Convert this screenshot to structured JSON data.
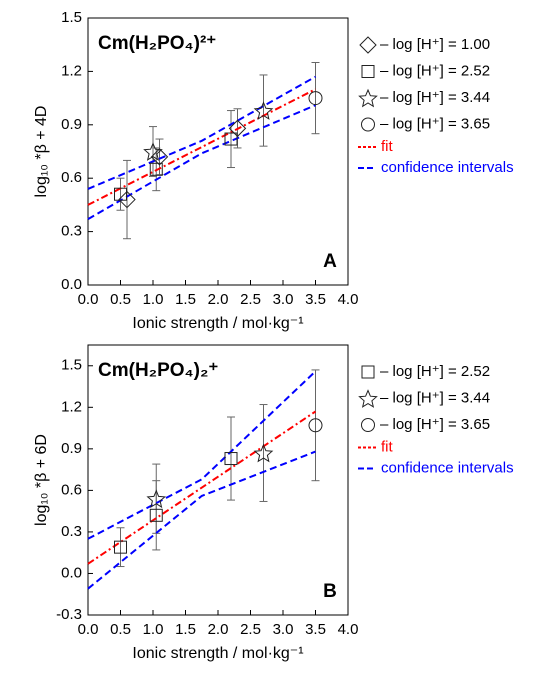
{
  "chart_data": [
    {
      "type": "scatter",
      "title": "Cm(H₂PO₄)²⁺",
      "xlabel": "Ionic strength / mol·kg⁻¹",
      "ylabel": "log₁₀ *β + 4D",
      "annotation": "A",
      "xlim": [
        0,
        4
      ],
      "ylim": [
        0,
        1.5
      ],
      "xticks": [
        {
          "value": 0,
          "label": "0.0"
        },
        0.5,
        {
          "value": 1,
          "label": "1.0"
        },
        1.5,
        {
          "value": 2,
          "label": "2.0"
        },
        2.5,
        {
          "value": 3,
          "label": "3.0"
        },
        3.5,
        {
          "value": 4,
          "label": "4.0"
        }
      ],
      "yticks": [
        {
          "value": 0,
          "label": "0.0"
        },
        0.3,
        0.6,
        0.9,
        1.2,
        1.5
      ],
      "series": [
        {
          "name": "– log [H⁺] = 1.00",
          "marker": "diamond",
          "x": [
            0.6,
            1.1,
            2.3
          ],
          "values": [
            0.48,
            0.72,
            0.88
          ],
          "errors": [
            0.22,
            0.1,
            0.11
          ]
        },
        {
          "name": "– log [H⁺] = 2.52",
          "marker": "square",
          "x": [
            0.5,
            1.05,
            2.2
          ],
          "values": [
            0.51,
            0.65,
            0.82
          ],
          "errors": [
            0.09,
            0.12,
            0.16
          ]
        },
        {
          "name": "– log [H⁺] = 3.44",
          "marker": "star",
          "x": [
            1.0,
            2.7
          ],
          "values": [
            0.75,
            0.98
          ],
          "errors": [
            0.14,
            0.2
          ]
        },
        {
          "name": "– log [H⁺] = 3.65",
          "marker": "circle",
          "x": [
            3.5
          ],
          "values": [
            1.05
          ],
          "errors": [
            0.2
          ]
        }
      ],
      "fit": {
        "name": "fit",
        "color": "#ff0000",
        "x": [
          0,
          3.5
        ],
        "values": [
          0.45,
          1.1
        ]
      },
      "ci": {
        "name": "confidence intervals",
        "color": "#0000ff",
        "x": [
          0,
          1.75,
          3.5
        ],
        "upper": [
          0.54,
          0.81,
          1.17
        ],
        "lower": [
          0.37,
          0.74,
          1.01
        ]
      }
    },
    {
      "type": "scatter",
      "title": "Cm(H₂PO₄)₂⁺",
      "xlabel": "Ionic strength / mol·kg⁻¹",
      "ylabel": "log₁₀ *β + 6D",
      "annotation": "B",
      "xlim": [
        0,
        4
      ],
      "ylim": [
        -0.3,
        1.65
      ],
      "xticks": [
        {
          "value": 0,
          "label": "0.0"
        },
        0.5,
        {
          "value": 1,
          "label": "1.0"
        },
        1.5,
        {
          "value": 2,
          "label": "2.0"
        },
        2.5,
        {
          "value": 3,
          "label": "3.0"
        },
        3.5,
        {
          "value": 4,
          "label": "4.0"
        }
      ],
      "yticks": [
        -0.3,
        {
          "value": 0,
          "label": "0.0"
        },
        0.3,
        0.6,
        0.9,
        1.2,
        1.5
      ],
      "series": [
        {
          "name": "– log [H⁺] = 2.52",
          "marker": "square",
          "x": [
            0.5,
            1.05,
            2.2
          ],
          "values": [
            0.19,
            0.42,
            0.83
          ],
          "errors": [
            0.14,
            0.25,
            0.3
          ]
        },
        {
          "name": "– log [H⁺] = 3.44",
          "marker": "star",
          "x": [
            1.05,
            2.7
          ],
          "values": [
            0.54,
            0.87
          ],
          "errors": [
            0.25,
            0.35
          ]
        },
        {
          "name": "– log [H⁺] = 3.65",
          "marker": "circle",
          "x": [
            3.5
          ],
          "values": [
            1.07
          ],
          "errors": [
            0.4
          ]
        }
      ],
      "fit": {
        "name": "fit",
        "color": "#ff0000",
        "x": [
          0,
          3.5
        ],
        "values": [
          0.07,
          1.17
        ]
      },
      "ci": {
        "name": "confidence intervals",
        "color": "#0000ff",
        "x": [
          0,
          1.75,
          3.5
        ],
        "upper": [
          0.25,
          0.68,
          1.46
        ],
        "lower": [
          -0.11,
          0.56,
          0.88
        ]
      }
    }
  ]
}
